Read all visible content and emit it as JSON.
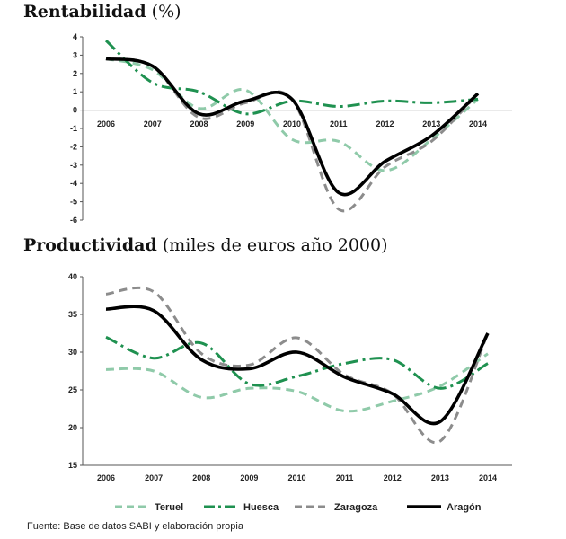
{
  "chart_data": [
    {
      "type": "line",
      "title": "Rentabilidad",
      "unit": "(%)",
      "x": [
        "2006",
        "2007",
        "2008",
        "2009",
        "2010",
        "2011",
        "2012",
        "2013",
        "2014"
      ],
      "ylim": [
        -6,
        4
      ],
      "yticks": [
        "4",
        "3",
        "2",
        "1",
        "0",
        "-1",
        "-2",
        "-3",
        "-4",
        "-5",
        "-6"
      ],
      "series": [
        {
          "name": "Teruel",
          "values": [
            2.8,
            2.2,
            0.1,
            1.1,
            -1.6,
            -1.7,
            -3.3,
            -1.6,
            0.6
          ]
        },
        {
          "name": "Huesca",
          "values": [
            3.8,
            1.5,
            1.0,
            -0.2,
            0.5,
            0.2,
            0.5,
            0.4,
            0.6
          ]
        },
        {
          "name": "Zaragoza",
          "values": [
            2.8,
            2.4,
            -0.4,
            0.4,
            0.6,
            -5.4,
            -3.1,
            -1.7,
            0.9
          ]
        },
        {
          "name": "Aragón",
          "values": [
            2.8,
            2.4,
            -0.2,
            0.5,
            0.6,
            -4.5,
            -2.8,
            -1.4,
            0.9
          ]
        }
      ]
    },
    {
      "type": "line",
      "title": "Productividad",
      "unit": "(miles de euros año 2000)",
      "x": [
        "2006",
        "2007",
        "2008",
        "2009",
        "2010",
        "2011",
        "2012",
        "2013",
        "2014"
      ],
      "ylim": [
        15,
        40
      ],
      "yticks": [
        "40",
        "35",
        "30",
        "25",
        "20",
        "15"
      ],
      "series": [
        {
          "name": "Teruel",
          "values": [
            27.7,
            27.5,
            24.0,
            25.2,
            24.8,
            22.2,
            23.5,
            25.5,
            29.8
          ]
        },
        {
          "name": "Huesca",
          "values": [
            32.0,
            29.2,
            31.2,
            25.8,
            26.8,
            28.5,
            29.0,
            25.2,
            28.5
          ]
        },
        {
          "name": "Zaragoza",
          "values": [
            37.7,
            38.0,
            29.8,
            28.3,
            31.9,
            27.0,
            24.5,
            18.2,
            32.5
          ]
        },
        {
          "name": "Aragón",
          "values": [
            35.7,
            35.5,
            29.0,
            27.8,
            30.0,
            26.7,
            24.5,
            20.8,
            32.5
          ]
        }
      ]
    }
  ],
  "legend": [
    {
      "name": "Teruel",
      "color": "#8fcaa9",
      "dash": "dashed"
    },
    {
      "name": "Huesca",
      "color": "#1f9150",
      "dash": "dashdot"
    },
    {
      "name": "Zaragoza",
      "color": "#8c8c8c",
      "dash": "dashed"
    },
    {
      "name": "Aragón",
      "color": "#000000",
      "dash": "solid"
    }
  ],
  "source": "Fuente: Base de datos SABI y elaboración propia"
}
